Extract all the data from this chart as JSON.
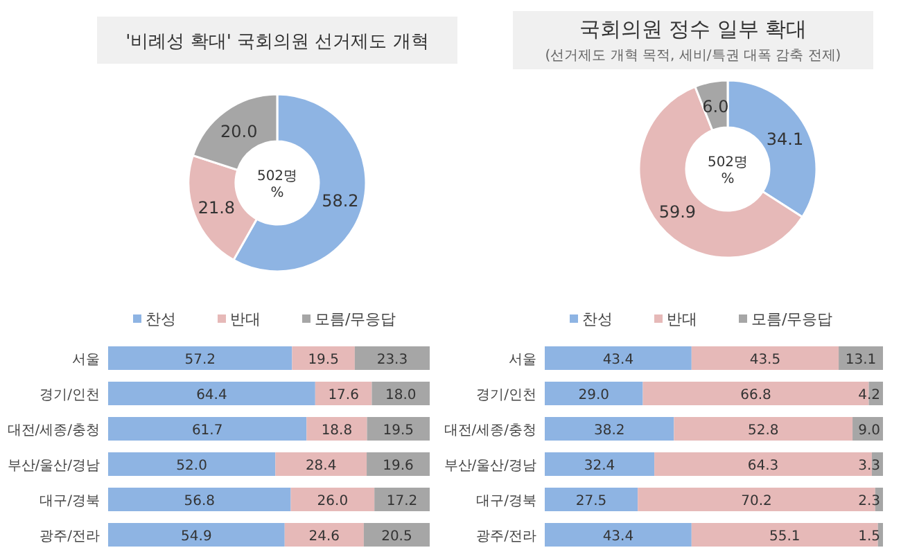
{
  "chart_data": [
    {
      "type": "donut",
      "title": "'비례성 확대' 국회의원 선거제도 개혁",
      "categories": [
        null,
        null,
        null
      ],
      "values": [
        58.2,
        21.8,
        20.0
      ],
      "value_labels": [
        "58.2",
        "21.8",
        "20.0"
      ],
      "colors": [
        "#8eb4e3",
        "#e6b9b8",
        "#a6a6a6"
      ],
      "annotations": [
        "502명",
        "%"
      ]
    },
    {
      "type": "donut",
      "title": "국회의원 정수 일부 확대",
      "subtitle": "(선거제도 개혁 목적, 세비/특권 대폭 감축 전제)",
      "categories": [
        null,
        null,
        null
      ],
      "values": [
        34.1,
        59.9,
        6.0
      ],
      "value_labels": [
        "34.1",
        "59.9",
        "6.0"
      ],
      "colors": [
        "#8eb4e3",
        "#e6b9b8",
        "#a6a6a6"
      ],
      "annotations": [
        "502명",
        "%"
      ]
    },
    {
      "type": "bar",
      "orientation": "horizontal",
      "stacked": true,
      "categories": [
        "서울",
        "경기/인천",
        "대전/세종/충청",
        "부산/울산/경남",
        "대구/경북",
        "광주/전라"
      ],
      "xlim": [
        0,
        100
      ],
      "legend": "top",
      "series": [
        {
          "name": "찬성",
          "color": "#8eb4e3",
          "values": [
            57.2,
            64.4,
            61.7,
            52.0,
            56.8,
            54.9
          ],
          "value_labels": [
            "57.2",
            "64.4",
            "61.7",
            "52.0",
            "56.8",
            "54.9"
          ]
        },
        {
          "name": "반대",
          "color": "#e6b9b8",
          "values": [
            19.5,
            17.6,
            18.8,
            28.4,
            26.0,
            24.6
          ],
          "value_labels": [
            "19.5",
            "17.6",
            "18.8",
            "28.4",
            "26.0",
            "24.6"
          ]
        },
        {
          "name": "모름/무응답",
          "color": "#a6a6a6",
          "values": [
            23.3,
            18.0,
            19.5,
            19.6,
            17.2,
            20.5
          ],
          "value_labels": [
            "23.3",
            "18.0",
            "19.5",
            "19.6",
            "17.2",
            "20.5"
          ]
        }
      ]
    },
    {
      "type": "bar",
      "orientation": "horizontal",
      "stacked": true,
      "categories": [
        "서울",
        "경기/인천",
        "대전/세종/충청",
        "부산/울산/경남",
        "대구/경북",
        "광주/전라"
      ],
      "xlim": [
        0,
        100
      ],
      "legend": "top",
      "series": [
        {
          "name": "찬성",
          "color": "#8eb4e3",
          "values": [
            43.4,
            29.0,
            38.2,
            32.4,
            27.5,
            43.4
          ],
          "value_labels": [
            "43.4",
            "29.0",
            "38.2",
            "32.4",
            "27.5",
            "43.4"
          ]
        },
        {
          "name": "반대",
          "color": "#e6b9b8",
          "values": [
            43.5,
            66.8,
            52.8,
            64.3,
            70.2,
            55.1
          ],
          "value_labels": [
            "43.5",
            "66.8",
            "52.8",
            "64.3",
            "70.2",
            "55.1"
          ]
        },
        {
          "name": "모름/무응답",
          "color": "#a6a6a6",
          "values": [
            13.1,
            4.2,
            9.0,
            3.3,
            2.3,
            1.5
          ],
          "value_labels": [
            "13.1",
            "4.2",
            "9.0",
            "3.3",
            "2.3",
            "1.5"
          ]
        }
      ]
    }
  ]
}
